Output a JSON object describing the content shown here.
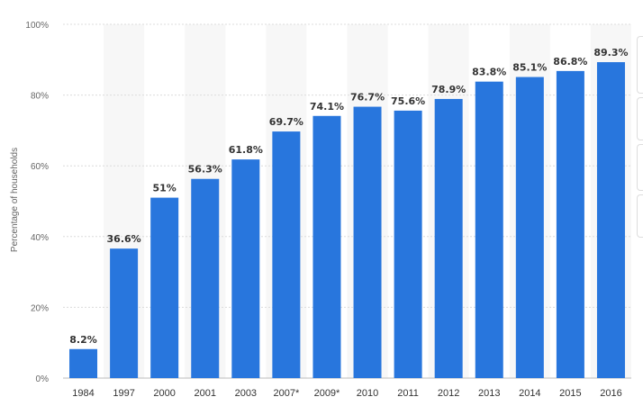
{
  "chart_data": {
    "type": "bar",
    "categories": [
      "1984",
      "1997",
      "2000",
      "2001",
      "2003",
      "2007*",
      "2009*",
      "2010",
      "2011",
      "2012",
      "2013",
      "2014",
      "2015",
      "2016"
    ],
    "values": [
      8.2,
      36.6,
      51,
      56.3,
      61.8,
      69.7,
      74.1,
      76.7,
      75.6,
      78.9,
      83.8,
      85.1,
      86.8,
      89.3
    ],
    "data_labels": [
      "8.2%",
      "36.6%",
      "51%",
      "56.3%",
      "61.8%",
      "69.7%",
      "74.1%",
      "76.7%",
      "75.6%",
      "78.9%",
      "83.8%",
      "85.1%",
      "86.8%",
      "89.3%"
    ],
    "ylabel": "Percentage of households",
    "yticks": [
      "0%",
      "20%",
      "40%",
      "60%",
      "80%",
      "100%"
    ],
    "ylim": [
      0,
      100
    ],
    "grid": true,
    "legend": "none",
    "colors": {
      "bar": "#2876dd",
      "band": "#f7f7f7",
      "grid": "#dcdcdc"
    }
  }
}
